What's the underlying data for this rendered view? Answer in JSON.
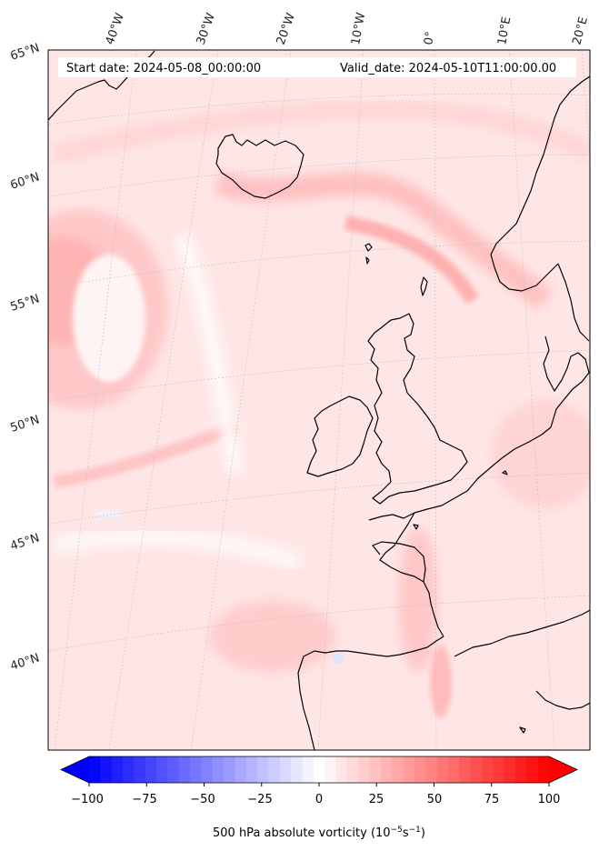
{
  "header": {
    "start_date": "Start date: 2024-05-08_00:00:00",
    "valid_date": "Valid_date: 2024-05-10T11:00:00.00"
  },
  "map": {
    "projection": "conic",
    "lon_labels": [
      "40°W",
      "30°W",
      "20°W",
      "10°W",
      "0°",
      "10°E",
      "20°E"
    ],
    "lat_labels": [
      "65°N",
      "60°N",
      "55°N",
      "50°N",
      "45°N",
      "40°N"
    ],
    "field": "500 hPa absolute vorticity",
    "gridlines": true
  },
  "colorbar": {
    "vmin": -100,
    "vmax": 100,
    "levels": 41,
    "extend": "both",
    "low_color": "#0000ff",
    "mid_color": "#ffffff",
    "high_color": "#ff0000",
    "ticks": [
      "−100",
      "−75",
      "−50",
      "−25",
      "0",
      "25",
      "50",
      "75",
      "100"
    ],
    "label_main": "500 hPa absolute vorticity (10",
    "label_exp1": "−5",
    "label_mid": "s",
    "label_exp2": "−1",
    "label_end": ")"
  }
}
